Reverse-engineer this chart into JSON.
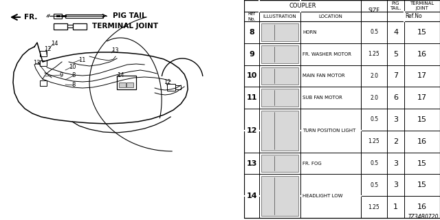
{
  "bg_color": "#ffffff",
  "rows": [
    {
      "ref": "8",
      "location": "HORN",
      "sizes": [
        "0.5"
      ],
      "pig": [
        "4"
      ],
      "tj": [
        "15"
      ]
    },
    {
      "ref": "9",
      "location": "FR. WASHER MOTOR",
      "sizes": [
        "1.25"
      ],
      "pig": [
        "5"
      ],
      "tj": [
        "16"
      ]
    },
    {
      "ref": "10",
      "location": "MAIN FAN MOTOR",
      "sizes": [
        "2.0"
      ],
      "pig": [
        "7"
      ],
      "tj": [
        "17"
      ]
    },
    {
      "ref": "11",
      "location": "SUB FAN MOTOR",
      "sizes": [
        "2.0"
      ],
      "pig": [
        "6"
      ],
      "tj": [
        "17"
      ]
    },
    {
      "ref": "12",
      "location": "TURN POSITION LIGHT",
      "sizes": [
        "0.5",
        "1.25"
      ],
      "pig": [
        "3",
        "2"
      ],
      "tj": [
        "15",
        "16"
      ]
    },
    {
      "ref": "13",
      "location": "FR. FOG",
      "sizes": [
        "0.5"
      ],
      "pig": [
        "3"
      ],
      "tj": [
        "15"
      ]
    },
    {
      "ref": "14",
      "location": "HEADLIGHT LOW",
      "sizes": [
        "0.5",
        "1.25"
      ],
      "pig": [
        "3",
        "1"
      ],
      "tj": [
        "15",
        "16"
      ]
    }
  ],
  "diagram_code": "TZ34B0720",
  "legend_pigtail": "PIG TAIL",
  "legend_terminal": "TERMINAL JOINT",
  "fr_label": "FR."
}
